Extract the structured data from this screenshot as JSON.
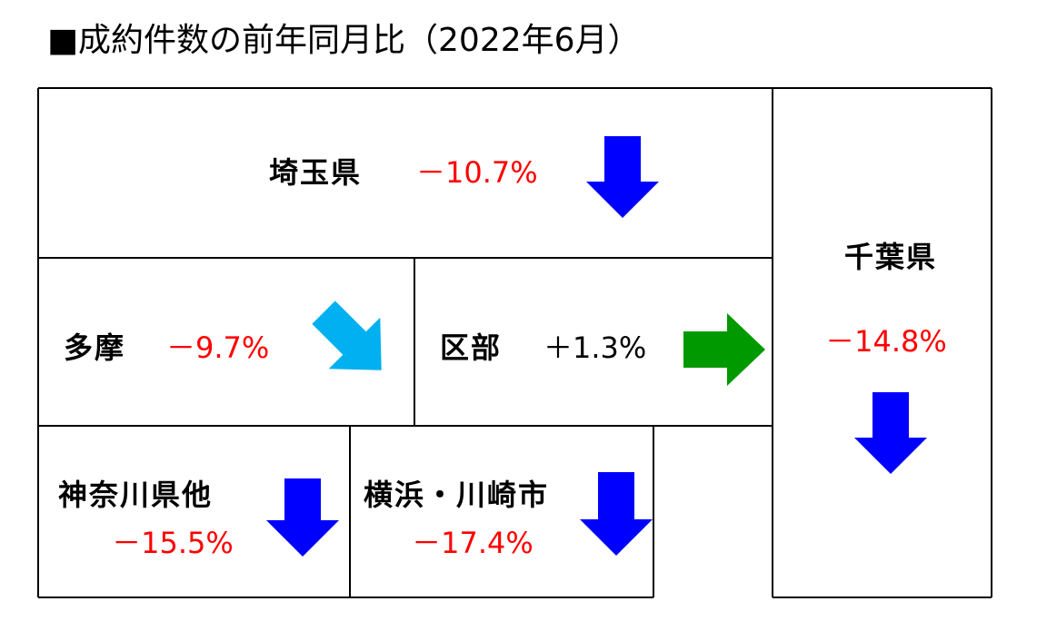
{
  "title": "■成約件数の前年同月比（2022年6月）",
  "regions": [
    {
      "name": "埼玉県",
      "change": "－10.7%"
    },
    {
      "name": "多摩",
      "change": "－9.7%"
    },
    {
      "name": "区部",
      "change": "＋1.3%"
    },
    {
      "name": "千葉県",
      "change": "－14.8%"
    },
    {
      "name": "神奈川県他",
      "change": "－15.5%"
    },
    {
      "name": "横浜・川崎市",
      "change": "－17.4%"
    }
  ]
}
